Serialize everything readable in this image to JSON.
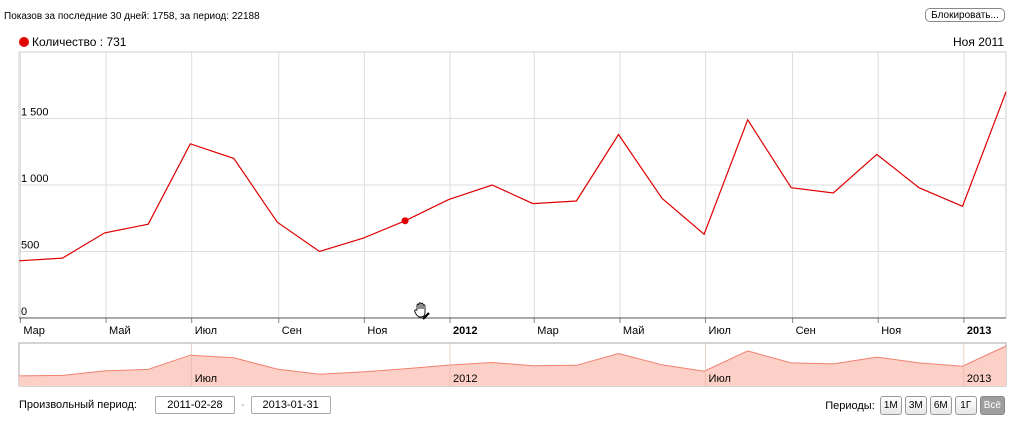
{
  "header": {
    "summary": "Показов за последние 30 дней: 1758, за период: 22188",
    "block_button": "Блокировать..."
  },
  "legend": {
    "dot_color": "#e00000",
    "label": "Количество : 731",
    "hover_date": "Ноя 2011"
  },
  "colors": {
    "line": "#e00000",
    "navigator_fill": "#fcd0c6",
    "navigator_line": "#f08070",
    "grid": "#dddddd",
    "active_period": "#9e9e9e"
  },
  "chart_data": {
    "type": "line",
    "x": [
      "2011-02-28",
      "2011-03-31",
      "2011-04-30",
      "2011-05-31",
      "2011-06-30",
      "2011-07-31",
      "2011-08-31",
      "2011-09-30",
      "2011-10-31",
      "2011-11-30",
      "2011-12-31",
      "2012-01-31",
      "2012-02-29",
      "2012-03-31",
      "2012-04-30",
      "2012-05-31",
      "2012-06-30",
      "2012-07-31",
      "2012-08-31",
      "2012-09-30",
      "2012-10-31",
      "2012-11-30",
      "2012-12-31",
      "2013-01-31"
    ],
    "series": [
      {
        "name": "Количество",
        "values": [
          430,
          450,
          640,
          705,
          1310,
          1200,
          720,
          500,
          600,
          731,
          890,
          1000,
          860,
          880,
          1380,
          900,
          630,
          1490,
          980,
          940,
          1230,
          980,
          840,
          1700
        ]
      }
    ],
    "ylim": [
      0,
      2000
    ],
    "y_ticks": [
      {
        "value": 0,
        "label": "0"
      },
      {
        "value": 500,
        "label": "500"
      },
      {
        "value": 1000,
        "label": "1 000"
      },
      {
        "value": 1500,
        "label": "1 500"
      }
    ],
    "x_ticks": [
      {
        "date": "2011-03-01",
        "label": "Мар",
        "bold": false
      },
      {
        "date": "2011-05-01",
        "label": "Май",
        "bold": false
      },
      {
        "date": "2011-07-01",
        "label": "Июл",
        "bold": false
      },
      {
        "date": "2011-09-01",
        "label": "Сен",
        "bold": false
      },
      {
        "date": "2011-11-01",
        "label": "Ноя",
        "bold": false
      },
      {
        "date": "2012-01-01",
        "label": "2012",
        "bold": true
      },
      {
        "date": "2012-03-01",
        "label": "Мар",
        "bold": false
      },
      {
        "date": "2012-05-01",
        "label": "Май",
        "bold": false
      },
      {
        "date": "2012-07-01",
        "label": "Июл",
        "bold": false
      },
      {
        "date": "2012-09-01",
        "label": "Сен",
        "bold": false
      },
      {
        "date": "2012-11-01",
        "label": "Ноя",
        "bold": false
      },
      {
        "date": "2013-01-01",
        "label": "2013",
        "bold": true
      }
    ],
    "highlight": {
      "date": "2011-11-30",
      "value": 731
    },
    "grid": true,
    "navigator_labels": [
      {
        "date": "2011-07-01",
        "label": "Июл"
      },
      {
        "date": "2012-01-01",
        "label": "2012"
      },
      {
        "date": "2012-07-01",
        "label": "Июл"
      },
      {
        "date": "2013-01-01",
        "label": "2013"
      }
    ]
  },
  "range": {
    "label": "Произвольный период:",
    "from": "2011-02-28",
    "to": "2013-01-31",
    "separator": "-"
  },
  "periods": {
    "label": "Периоды:",
    "buttons": [
      {
        "label": "1М",
        "active": false
      },
      {
        "label": "3М",
        "active": false
      },
      {
        "label": "6М",
        "active": false
      },
      {
        "label": "1Г",
        "active": false
      },
      {
        "label": "Всё",
        "active": true
      }
    ]
  }
}
